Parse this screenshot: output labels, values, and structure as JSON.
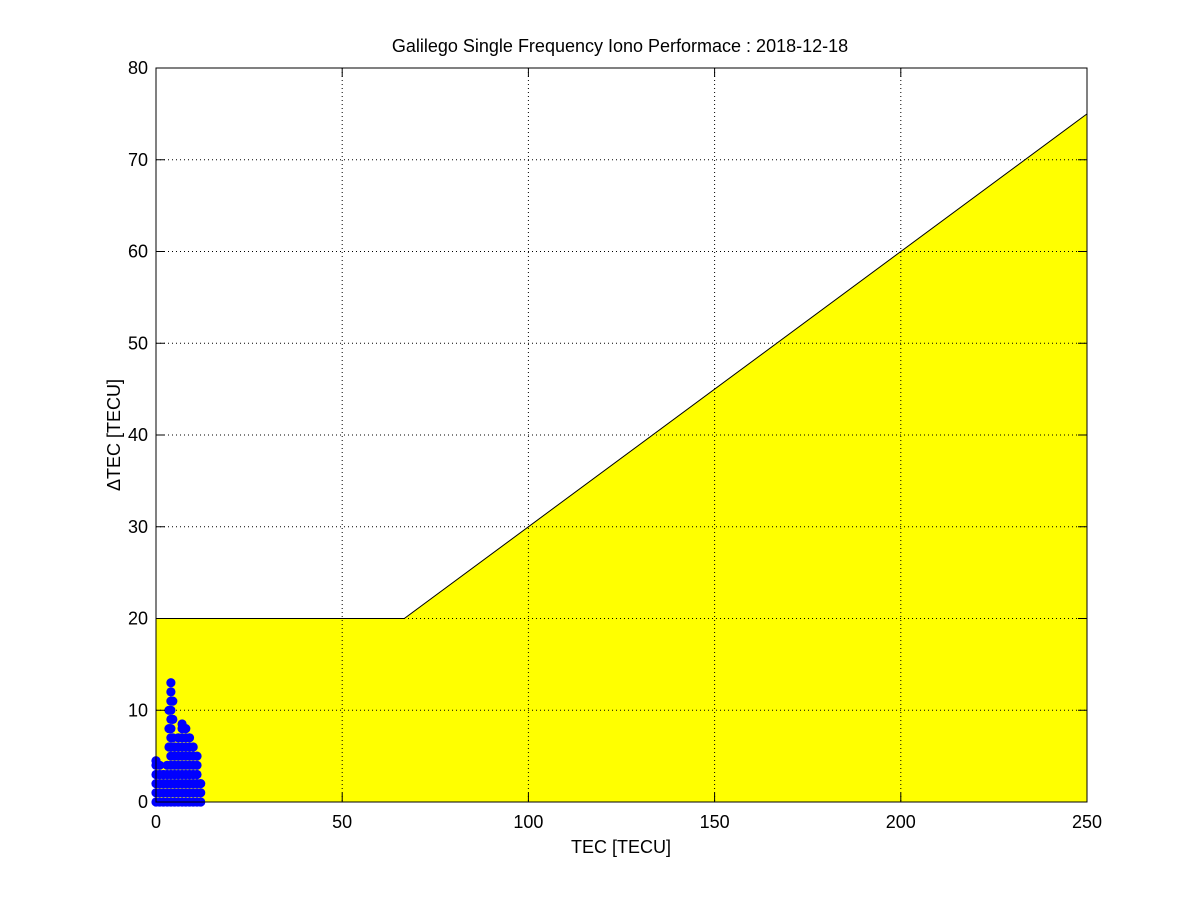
{
  "chart_data": {
    "type": "scatter",
    "title": "Galilego Single Frequency Iono Performace : 2018-12-18",
    "xlabel": "TEC [TECU]",
    "ylabel": "ΔTEC [TECU]",
    "xlim": [
      0,
      250
    ],
    "ylim": [
      0,
      80
    ],
    "xticks": [
      0,
      50,
      100,
      150,
      200,
      250
    ],
    "yticks": [
      0,
      10,
      20,
      30,
      40,
      50,
      60,
      70,
      80
    ],
    "grid": true,
    "threshold_region": {
      "color": "#ffff00",
      "boundary": [
        [
          0,
          20
        ],
        [
          66.67,
          20
        ],
        [
          250,
          75
        ]
      ]
    },
    "marker_color": "#0000ff",
    "points": [
      [
        0,
        0
      ],
      [
        0,
        1
      ],
      [
        0,
        2
      ],
      [
        0,
        3
      ],
      [
        0,
        4
      ],
      [
        0,
        4.5
      ],
      [
        1,
        0
      ],
      [
        1,
        1
      ],
      [
        1,
        2
      ],
      [
        1,
        3
      ],
      [
        1,
        4
      ],
      [
        2,
        0
      ],
      [
        2,
        1
      ],
      [
        2,
        2
      ],
      [
        2,
        3
      ],
      [
        3,
        0
      ],
      [
        3,
        1
      ],
      [
        3,
        2
      ],
      [
        3,
        3
      ],
      [
        3,
        4
      ],
      [
        4,
        0
      ],
      [
        4,
        1
      ],
      [
        4,
        2
      ],
      [
        4,
        3
      ],
      [
        4,
        4
      ],
      [
        4,
        5
      ],
      [
        4,
        6
      ],
      [
        4,
        7
      ],
      [
        4,
        8
      ],
      [
        4,
        9
      ],
      [
        4,
        10
      ],
      [
        4,
        11
      ],
      [
        4,
        12
      ],
      [
        4,
        13
      ],
      [
        3.5,
        6
      ],
      [
        3.5,
        8
      ],
      [
        3.5,
        10
      ],
      [
        4.5,
        7
      ],
      [
        4.5,
        9
      ],
      [
        4.5,
        11
      ],
      [
        5,
        0
      ],
      [
        5,
        1
      ],
      [
        5,
        2
      ],
      [
        5,
        3
      ],
      [
        5,
        4
      ],
      [
        5,
        5
      ],
      [
        5,
        6
      ],
      [
        6,
        0
      ],
      [
        6,
        1
      ],
      [
        6,
        2
      ],
      [
        6,
        3
      ],
      [
        6,
        4
      ],
      [
        6,
        5
      ],
      [
        6,
        6
      ],
      [
        6,
        7
      ],
      [
        7,
        0
      ],
      [
        7,
        1
      ],
      [
        7,
        2
      ],
      [
        7,
        3
      ],
      [
        7,
        4
      ],
      [
        7,
        5
      ],
      [
        7,
        6
      ],
      [
        7,
        7
      ],
      [
        7,
        8
      ],
      [
        7,
        8.5
      ],
      [
        8,
        0
      ],
      [
        8,
        1
      ],
      [
        8,
        2
      ],
      [
        8,
        3
      ],
      [
        8,
        4
      ],
      [
        8,
        5
      ],
      [
        8,
        6
      ],
      [
        8,
        7
      ],
      [
        8,
        8
      ],
      [
        9,
        0
      ],
      [
        9,
        1
      ],
      [
        9,
        2
      ],
      [
        9,
        3
      ],
      [
        9,
        4
      ],
      [
        9,
        5
      ],
      [
        9,
        6
      ],
      [
        9,
        7
      ],
      [
        10,
        0
      ],
      [
        10,
        1
      ],
      [
        10,
        2
      ],
      [
        10,
        3
      ],
      [
        10,
        4
      ],
      [
        10,
        5
      ],
      [
        10,
        6
      ],
      [
        11,
        0
      ],
      [
        11,
        1
      ],
      [
        11,
        2
      ],
      [
        11,
        3
      ],
      [
        11,
        4
      ],
      [
        11,
        5
      ],
      [
        12,
        0
      ],
      [
        12,
        1
      ],
      [
        12,
        2
      ]
    ]
  }
}
